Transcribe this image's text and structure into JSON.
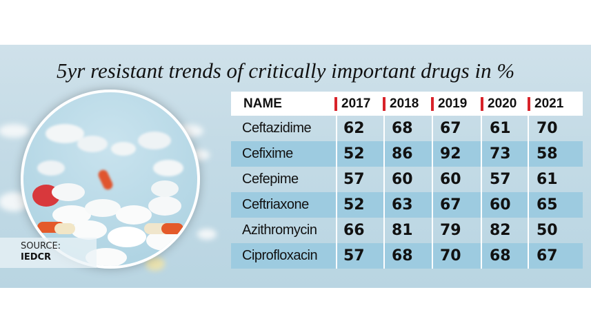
{
  "chart_data": {
    "type": "table",
    "title": "5yr resistant trends of critically important drugs in %",
    "columns": [
      "NAME",
      "2017",
      "2018",
      "2019",
      "2020",
      "2021"
    ],
    "rows": [
      {
        "name": "Ceftazidime",
        "values": [
          62,
          68,
          67,
          61,
          70
        ]
      },
      {
        "name": "Cefixime",
        "values": [
          52,
          86,
          92,
          73,
          58
        ]
      },
      {
        "name": "Cefepime",
        "values": [
          57,
          60,
          60,
          57,
          61
        ]
      },
      {
        "name": "Ceftriaxone",
        "values": [
          52,
          63,
          67,
          60,
          65
        ]
      },
      {
        "name": "Azithromycin",
        "values": [
          66,
          81,
          79,
          82,
          50
        ]
      },
      {
        "name": "Ciprofloxacin",
        "values": [
          57,
          68,
          70,
          68,
          67
        ]
      }
    ]
  },
  "source": {
    "label": "SOURCE:",
    "value": "IEDCR"
  },
  "colors": {
    "header_marker": "#d8232a",
    "alt_row": "#9dcbe0",
    "header_bg": "#ffffff"
  },
  "image": "pills-photo"
}
